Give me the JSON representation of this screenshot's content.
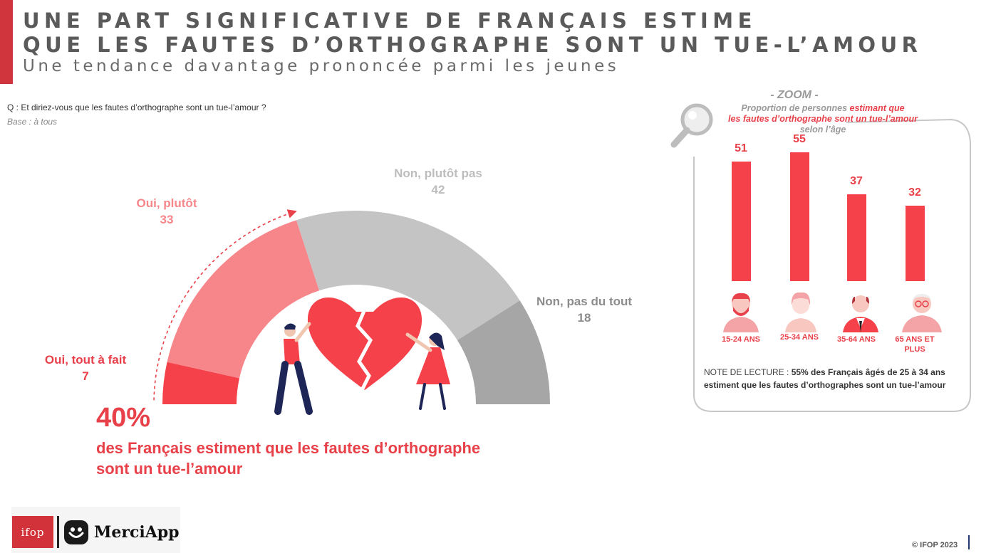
{
  "header": {
    "title_line1": "UNE PART SIGNIFICATIVE DE FRANÇAIS ESTIME",
    "title_line2": "QUE LES FAUTES D’ORTHOGRAPHE SONT UN TUE-L’AMOUR",
    "subtitle": "Une tendance davantage prononcée parmi les jeunes",
    "accent_color": "#d0343c"
  },
  "question": "Q : Et diriez-vous que les fautes d’orthographe sont un tue-l’amour  ?",
  "base": "Base : à tous",
  "chart_data": [
    {
      "type": "pie",
      "series": [
        {
          "label": "Oui, tout à fait",
          "value": 7,
          "color": "#f4414a"
        },
        {
          "label": "Oui, plutôt",
          "value": 33,
          "color": "#f7868b"
        },
        {
          "label": "Non, plutôt pas",
          "value": 42,
          "color": "#c4c4c4"
        },
        {
          "label": "Non, pas du tout",
          "value": 18,
          "color": "#a6a6a6"
        }
      ]
    },
    {
      "type": "bar",
      "categories": [
        "15-24 ANS",
        "25-34 ANS",
        "35-64 ANS",
        "65 ANS ET PLUS"
      ],
      "values": [
        51,
        55,
        37,
        32
      ],
      "color": "#f4414a"
    }
  ],
  "gauge_labels": {
    "oui_tout_a_fait": {
      "label": "Oui, tout à fait",
      "value": "7"
    },
    "oui_plutot": {
      "label": "Oui, plutôt",
      "value": "33"
    },
    "non_plutot_pas": {
      "label": "Non, plutôt pas",
      "value": "42"
    },
    "non_pas_du_tout": {
      "label": "Non, pas du tout",
      "value": "18"
    }
  },
  "headline": {
    "percent": "40%",
    "line1": "des Français estiment que les fautes d’orthographe",
    "line2": "sont un tue-l’amour"
  },
  "zoom": {
    "heading": "- ZOOM -",
    "desc_part1": "Proportion de personnes ",
    "desc_highlight1": "estimant que",
    "desc_highlight2": "les fautes d’orthographe sont un tue-l’amour",
    "desc_part2": "selon l’âge",
    "categories": [
      "15-24 ANS",
      "25-34 ANS",
      "35-64 ANS",
      "65 ANS ET PLUS"
    ]
  },
  "note": {
    "prefix": "NOTE DE LECTURE : ",
    "bold": "55% des Français âgés de 25 à 34 ans estiment que les fautes d’orthographes sont un tue-l’amour"
  },
  "logos": {
    "ifop": "ifop",
    "merciapp": "MerciApp"
  },
  "footer": {
    "copyright": "© IFOP 2023"
  }
}
